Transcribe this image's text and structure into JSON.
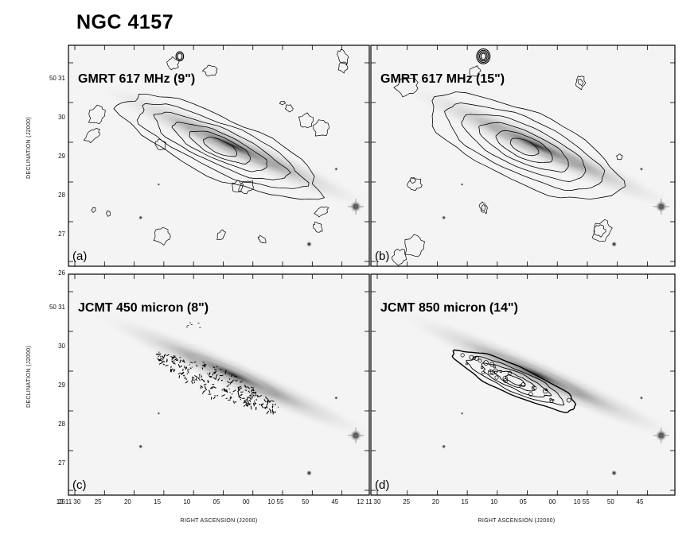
{
  "figure": {
    "title": "NGC 4157",
    "axes": {
      "xlabel": "RIGHT ASCENSION (J2000)",
      "ylabel": "DECLINATION (J2000)",
      "x_ticks": [
        "12 11 30",
        "25",
        "20",
        "15",
        "10",
        "05",
        "00",
        "10 55",
        "50",
        "45",
        "12 11"
      ],
      "x_ticks_right": [
        "30",
        "25",
        "20",
        "15",
        "10",
        "05",
        "00",
        "10 55",
        "50",
        "45"
      ],
      "y_ticks": [
        "50 31",
        "30",
        "29",
        "28",
        "27",
        "26"
      ]
    },
    "panels": [
      {
        "id": "a",
        "label": "(a)",
        "title": "GMRT 617 MHz (9\")",
        "contour_style": "radio-fine"
      },
      {
        "id": "b",
        "label": "(b)",
        "title": "GMRT 617 MHz (15\")",
        "contour_style": "radio-smooth"
      },
      {
        "id": "c",
        "label": "(c)",
        "title": "JCMT 450 micron (8\")",
        "contour_style": "noisy-submm"
      },
      {
        "id": "d",
        "label": "(d)",
        "title": "JCMT 850 micron (14\")",
        "contour_style": "compact-submm"
      }
    ]
  }
}
